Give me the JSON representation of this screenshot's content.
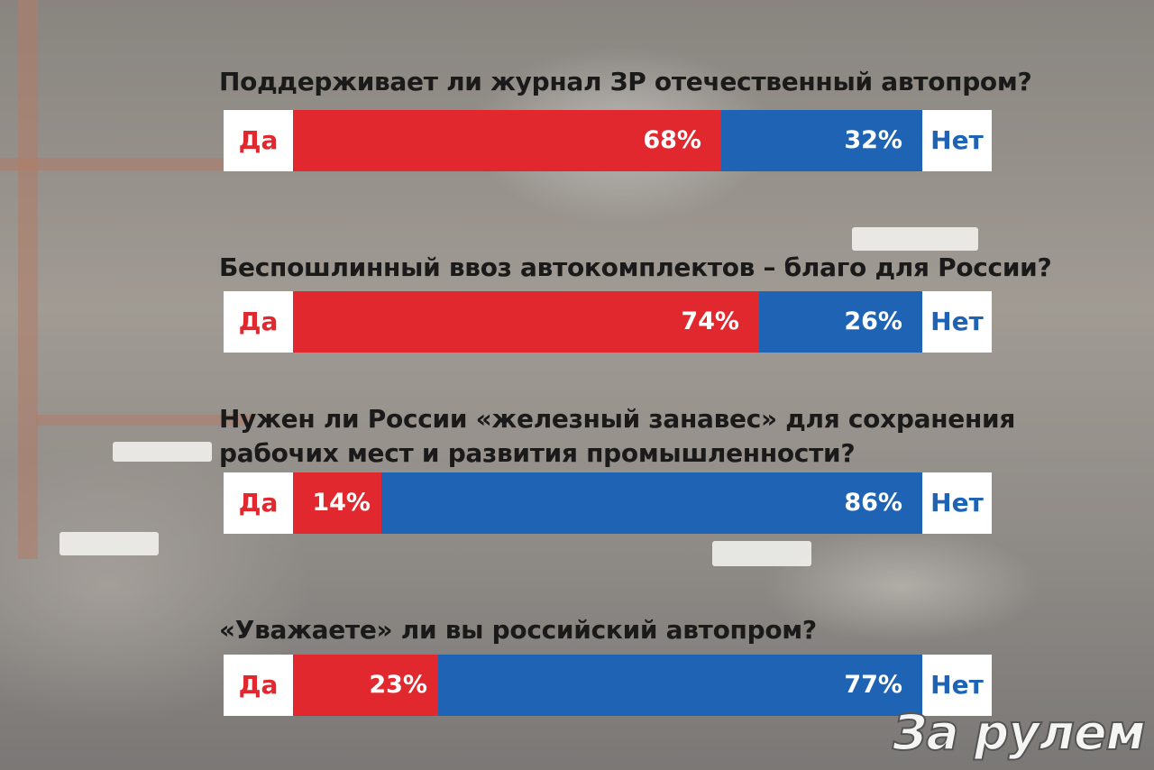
{
  "colors": {
    "yes": "#e0282e",
    "no": "#1f64b4",
    "label_bg": "#ffffff"
  },
  "yes_label": "Да",
  "no_label": "Нет",
  "logo_text": "За рулем",
  "chart_data": {
    "type": "bar",
    "orientation": "horizontal-stacked",
    "categories": [
      "Поддерживает ли журнал ЗР отечественный автопром?",
      "Беспошлинный ввоз автокомплектов – благо для России?",
      "Нужен ли России «железный занавес» для сохранения\nрабочих мест и развития промышленности?",
      "«Уважаете» ли вы российский автопром?"
    ],
    "series": [
      {
        "name": "Да",
        "values": [
          68,
          74,
          14,
          23
        ],
        "labels": [
          "68%",
          "74%",
          "14%",
          "23%"
        ]
      },
      {
        "name": "Нет",
        "values": [
          32,
          26,
          86,
          77
        ],
        "labels": [
          "32%",
          "26%",
          "86%",
          "77%"
        ]
      }
    ],
    "unit": "%",
    "xlim": [
      0,
      100
    ]
  }
}
